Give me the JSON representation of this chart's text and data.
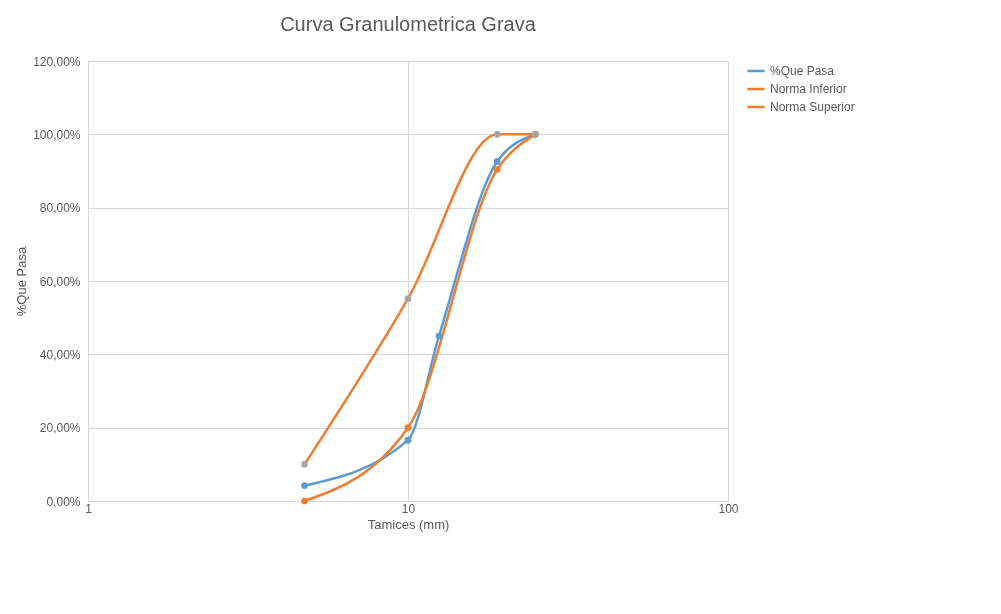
{
  "chart_data": {
    "type": "line",
    "title": "Curva Granulometrica Grava",
    "xlabel": "Tamices (mm)",
    "ylabel": "%Que Pasa",
    "log": "x",
    "xlim": [
      1,
      100
    ],
    "xticks": [
      1,
      10,
      100
    ],
    "ylim": [
      0,
      120
    ],
    "yticks": [
      {
        "value": 0,
        "label": "0,00%"
      },
      {
        "value": 20,
        "label": "20,00%"
      },
      {
        "value": 40,
        "label": "40,00%"
      },
      {
        "value": 60,
        "label": "60,00%"
      },
      {
        "value": 80,
        "label": "80,00%"
      },
      {
        "value": 100,
        "label": "100,00%"
      },
      {
        "value": 120,
        "label": "120,00%"
      }
    ],
    "grid": true,
    "legend": "right",
    "marker": "circle",
    "line_style": "solid",
    "series": [
      {
        "name": "%Que Pasa",
        "color": "#5b9bd5",
        "x": [
          4.75,
          10,
          12.5,
          19,
          25
        ],
        "values": [
          4.2,
          16.6,
          45,
          92.6,
          100
        ]
      },
      {
        "name": "Norma Inferior",
        "color": "#ed7d31",
        "x": [
          4.75,
          10,
          19,
          25
        ],
        "values": [
          0,
          20,
          90.4,
          100
        ]
      },
      {
        "name": "Norma Superior",
        "color": "#ed7d31",
        "colors": [
          "#a5a5a5",
          "#a5a5a5",
          "#a5a5a5",
          "#a5a5a5"
        ],
        "x": [
          4.75,
          10,
          19,
          25
        ],
        "values": [
          10,
          55.2,
          100,
          100
        ]
      }
    ]
  }
}
